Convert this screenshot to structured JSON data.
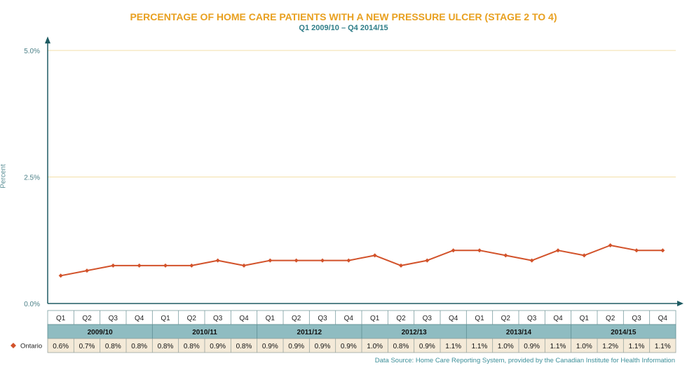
{
  "chart_data": {
    "type": "line",
    "title": "PERCENTAGE OF HOME CARE PATIENTS WITH A NEW PRESSURE ULCER (STAGE 2 TO 4)",
    "subtitle": "Q1 2009/10 – Q4 2014/15",
    "ylabel": "Percent",
    "ylim": [
      0,
      5
    ],
    "yticks": [
      "0.0%",
      "2.5%",
      "5.0%"
    ],
    "ytick_values": [
      0,
      2.5,
      5
    ],
    "grid": true,
    "quarters": [
      "Q1",
      "Q2",
      "Q3",
      "Q4",
      "Q1",
      "Q2",
      "Q3",
      "Q4",
      "Q1",
      "Q2",
      "Q3",
      "Q4",
      "Q1",
      "Q2",
      "Q3",
      "Q4",
      "Q1",
      "Q2",
      "Q3",
      "Q4",
      "Q1",
      "Q2",
      "Q3",
      "Q4"
    ],
    "years": [
      "2009/10",
      "2010/11",
      "2011/12",
      "2012/13",
      "2013/14",
      "2014/15"
    ],
    "series": [
      {
        "name": "Ontario",
        "color": "#d2522a",
        "values": [
          0.55,
          0.65,
          0.75,
          0.75,
          0.75,
          0.75,
          0.85,
          0.75,
          0.85,
          0.85,
          0.85,
          0.85,
          0.95,
          0.75,
          0.85,
          1.05,
          1.05,
          0.95,
          0.85,
          1.05,
          0.95,
          1.15,
          1.05,
          1.05
        ],
        "labels": [
          "0.6%",
          "0.7%",
          "0.8%",
          "0.8%",
          "0.8%",
          "0.8%",
          "0.9%",
          "0.8%",
          "0.9%",
          "0.9%",
          "0.9%",
          "0.9%",
          "1.0%",
          "0.8%",
          "0.9%",
          "1.1%",
          "1.1%",
          "1.0%",
          "0.9%",
          "1.1%",
          "1.0%",
          "1.2%",
          "1.1%",
          "1.1%"
        ]
      }
    ],
    "colors": {
      "title": "#e8a020",
      "subtitle": "#2e7d88",
      "axis": "#1f5c63",
      "grid": "#f3dfa8",
      "year_band": "#8fbcc1",
      "value_band": "#f4ead8"
    }
  },
  "source": "Data Source: Home Care Reporting System, provided by the Canadian Institute for Health Information"
}
